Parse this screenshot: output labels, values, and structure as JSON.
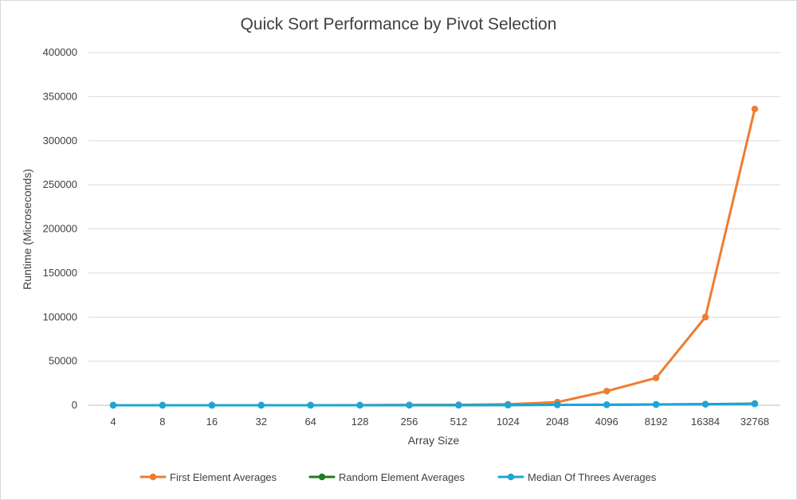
{
  "chart_data": {
    "type": "line",
    "title": "Quick Sort Performance by Pivot Selection",
    "xlabel": "Array Size",
    "ylabel": "Runtime (Microseconds)",
    "categories": [
      "4",
      "8",
      "16",
      "32",
      "64",
      "128",
      "256",
      "512",
      "1024",
      "2048",
      "4096",
      "8192",
      "16384",
      "32768"
    ],
    "ylim": [
      0,
      400000
    ],
    "yticks": [
      0,
      50000,
      100000,
      150000,
      200000,
      250000,
      300000,
      350000,
      400000
    ],
    "grid": true,
    "legend_position": "bottom",
    "series": [
      {
        "name": "First Element Averages",
        "color": "#ed7d31",
        "values": [
          1,
          2,
          4,
          10,
          30,
          100,
          300,
          500,
          1100,
          3500,
          16000,
          31000,
          100000,
          336000
        ]
      },
      {
        "name": "Random Element Averages",
        "color": "#1e7b1e",
        "values": [
          1,
          2,
          4,
          8,
          16,
          35,
          70,
          140,
          280,
          500,
          600,
          900,
          1200,
          1800
        ]
      },
      {
        "name": "Median Of Threes Averages",
        "color": "#1ea5d8",
        "values": [
          1,
          2,
          3,
          7,
          14,
          30,
          60,
          120,
          250,
          450,
          550,
          800,
          1100,
          1500
        ]
      }
    ]
  }
}
